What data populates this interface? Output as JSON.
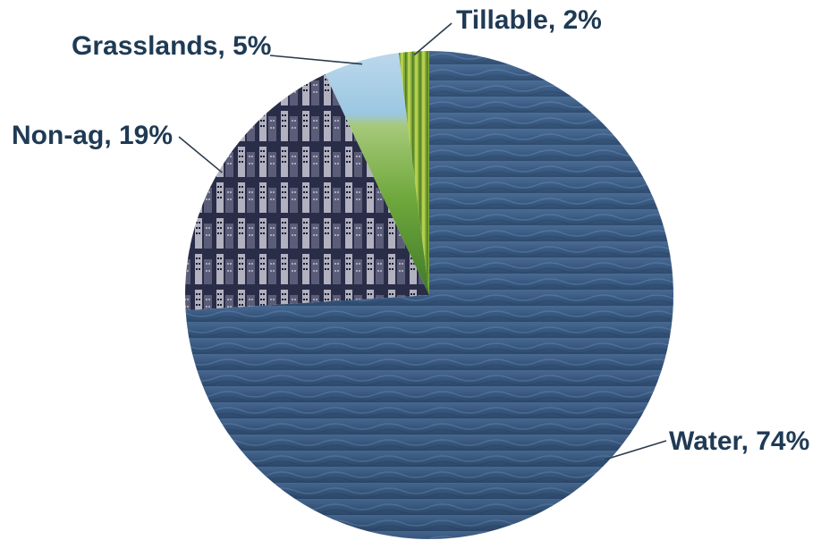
{
  "chart_data": {
    "type": "pie",
    "title": "",
    "slices": [
      {
        "name": "Water",
        "value": 74,
        "label": "Water, 74%",
        "color": "#34557a",
        "texture": "water-waves"
      },
      {
        "name": "Non-ag",
        "value": 19,
        "label": "Non-ag, 19%",
        "color": "#2c2f4a",
        "texture": "city-skyline"
      },
      {
        "name": "Grasslands",
        "value": 5,
        "label": "Grasslands, 5%",
        "color": "#7fb24a",
        "texture": "grass-field"
      },
      {
        "name": "Tillable",
        "value": 2,
        "label": "Tillable, 2%",
        "color": "#8cb83c",
        "texture": "crop-rows"
      }
    ],
    "start_angle_deg": 0,
    "direction": "counterclockwise",
    "legend": "none",
    "label_color": "#1f3a54"
  }
}
